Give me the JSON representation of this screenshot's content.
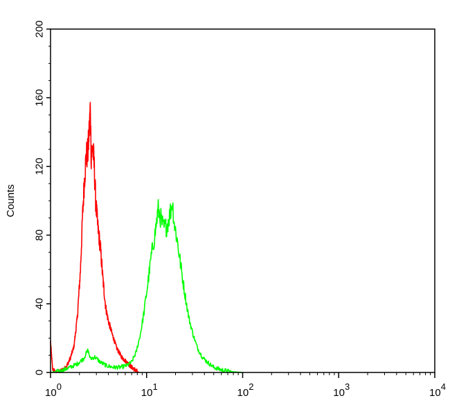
{
  "chart_data": {
    "type": "line",
    "title": "",
    "xlabel": "",
    "ylabel": "Counts",
    "x_scale": "log",
    "xlim": [
      1,
      10000
    ],
    "ylim": [
      0,
      200
    ],
    "x_ticks": [
      {
        "value": 1,
        "base": "10",
        "exp": "0"
      },
      {
        "value": 10,
        "base": "10",
        "exp": "1"
      },
      {
        "value": 100,
        "base": "10",
        "exp": "2"
      },
      {
        "value": 1000,
        "base": "10",
        "exp": "3"
      },
      {
        "value": 10000,
        "base": "10",
        "exp": "4"
      }
    ],
    "y_ticks": [
      0,
      40,
      80,
      120,
      160,
      200
    ],
    "y_tick_labels": [
      "0",
      "40",
      "80",
      "120",
      "160",
      "200"
    ],
    "grid": false,
    "series": [
      {
        "color": "#ff0000",
        "points": [
          [
            1.0,
            18
          ],
          [
            1.05,
            2
          ],
          [
            1.15,
            0
          ],
          [
            1.3,
            1
          ],
          [
            1.45,
            3
          ],
          [
            1.6,
            8
          ],
          [
            1.75,
            15
          ],
          [
            1.9,
            32
          ],
          [
            2.05,
            60
          ],
          [
            2.15,
            90
          ],
          [
            2.25,
            112
          ],
          [
            2.35,
            126
          ],
          [
            2.45,
            128
          ],
          [
            2.55,
            145
          ],
          [
            2.6,
            155
          ],
          [
            2.65,
            125
          ],
          [
            2.75,
            132
          ],
          [
            2.85,
            120
          ],
          [
            2.95,
            100
          ],
          [
            3.1,
            85
          ],
          [
            3.3,
            73
          ],
          [
            3.5,
            55
          ],
          [
            3.75,
            38
          ],
          [
            4.0,
            30
          ],
          [
            4.4,
            22
          ],
          [
            4.9,
            14
          ],
          [
            5.5,
            9
          ],
          [
            6.2,
            6
          ],
          [
            7.0,
            3
          ],
          [
            7.6,
            1.5
          ],
          [
            8.3,
            0
          ]
        ]
      },
      {
        "color": "#00ff00",
        "points": [
          [
            1.0,
            0
          ],
          [
            1.3,
            1
          ],
          [
            1.6,
            3
          ],
          [
            1.9,
            5
          ],
          [
            2.2,
            8
          ],
          [
            2.45,
            13
          ],
          [
            2.6,
            8
          ],
          [
            2.9,
            9
          ],
          [
            3.3,
            6
          ],
          [
            3.8,
            4
          ],
          [
            4.5,
            3
          ],
          [
            5.3,
            3
          ],
          [
            6.2,
            4
          ],
          [
            7.0,
            6
          ],
          [
            7.8,
            12
          ],
          [
            8.6,
            22
          ],
          [
            9.4,
            35
          ],
          [
            10.3,
            52
          ],
          [
            11.2,
            68
          ],
          [
            12.2,
            80
          ],
          [
            13.2,
            95
          ],
          [
            14.0,
            90
          ],
          [
            15.0,
            84
          ],
          [
            16.2,
            85
          ],
          [
            17.5,
            92
          ],
          [
            18.5,
            100
          ],
          [
            19.5,
            86
          ],
          [
            21.0,
            76
          ],
          [
            22.7,
            62
          ],
          [
            25.0,
            46
          ],
          [
            27.5,
            32
          ],
          [
            30.5,
            22
          ],
          [
            34.0,
            14
          ],
          [
            38.0,
            9
          ],
          [
            43.0,
            6
          ],
          [
            50.0,
            3
          ],
          [
            60.0,
            1.5
          ],
          [
            75.0,
            0.5
          ],
          [
            100.0,
            0
          ]
        ]
      }
    ]
  }
}
